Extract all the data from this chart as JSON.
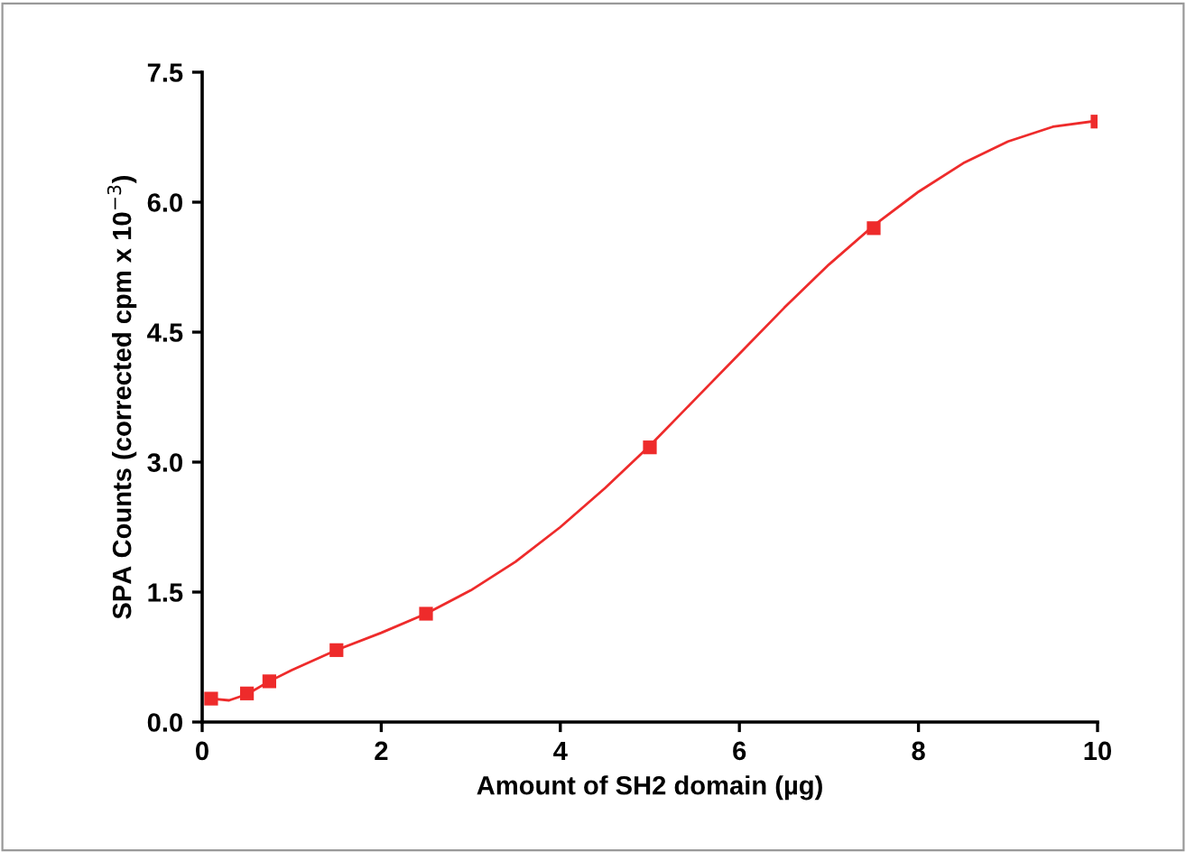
{
  "chart_data": {
    "type": "scatter",
    "xlabel": "Amount of SH2 domain (µg)",
    "ylabel": "SPA Counts (corrected cpm x 10$^{−3}$)",
    "xlim": [
      0,
      10
    ],
    "ylim": [
      0,
      7.5
    ],
    "xticks": [
      0,
      2,
      4,
      6,
      8,
      10
    ],
    "yticks": [
      {
        "value": 0,
        "label": "0.0"
      },
      {
        "value": 1.5,
        "label": "1.5"
      },
      {
        "value": 3,
        "label": "3.0"
      },
      {
        "value": 4.5,
        "label": "4.5"
      },
      {
        "value": 6,
        "label": "6.0"
      },
      {
        "value": 7.5,
        "label": "7.5"
      }
    ],
    "grid": false,
    "legend": false,
    "series": [
      {
        "color": "#ee2b2b",
        "marker": "square",
        "x": [
          0.1,
          0.5,
          0.75,
          1.5,
          2.5,
          5,
          7.5,
          10
        ],
        "values": [
          0.27,
          0.33,
          0.47,
          0.83,
          1.25,
          3.17,
          5.7,
          6.93
        ]
      },
      {
        "type": "line",
        "color": "#ee2b2b",
        "line_style": "solid",
        "x": [
          0.1,
          0.3,
          0.5,
          0.75,
          1,
          1.5,
          2,
          2.5,
          3,
          3.5,
          4,
          4.5,
          5,
          5.5,
          6,
          6.5,
          7,
          7.5,
          8,
          8.5,
          9,
          9.5,
          10
        ],
        "values": [
          0.27,
          0.25,
          0.32,
          0.47,
          0.6,
          0.83,
          1.03,
          1.25,
          1.52,
          1.85,
          2.25,
          2.7,
          3.19,
          3.72,
          4.25,
          4.78,
          5.28,
          5.73,
          6.12,
          6.45,
          6.7,
          6.87,
          6.94
        ]
      }
    ]
  }
}
